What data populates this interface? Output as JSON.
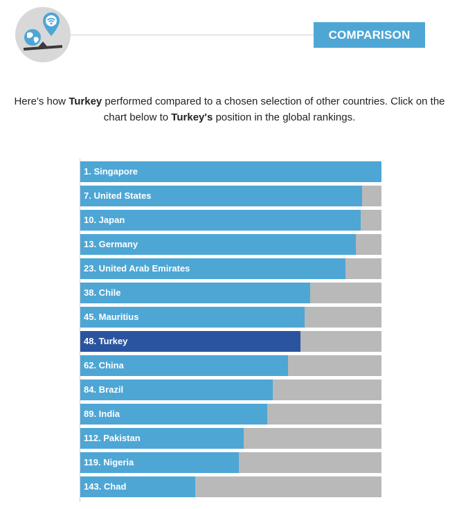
{
  "header": {
    "badge": "COMPARISON",
    "icon": "globe-wifi-scale-icon"
  },
  "intro": {
    "part1": "Here's how ",
    "country_bold": "Turkey",
    "part2": " performed compared to a chosen selection of other countries. Click on the chart below to ",
    "country_possessive_bold": "Turkey's",
    "part3": " position in the global rankings."
  },
  "colors": {
    "bar": "#4ea6d5",
    "highlight_bar": "#2b54a0",
    "track": "#b9b9b9",
    "badge": "#4ea6d5"
  },
  "chart_data": {
    "type": "bar",
    "orientation": "horizontal",
    "highlight": "48. Turkey",
    "categories": [
      "1. Singapore",
      "7. United States",
      "10. Japan",
      "13. Germany",
      "23. United Arab Emirates",
      "38. Chile",
      "45. Mauritius",
      "48. Turkey",
      "62. China",
      "84. Brazil",
      "89. India",
      "112. Pakistan",
      "119. Nigeria",
      "143. Chad"
    ],
    "values": [
      100,
      93.6,
      93.1,
      91.5,
      88.0,
      76.3,
      74.5,
      73.1,
      68.9,
      63.9,
      62.1,
      54.3,
      52.6,
      38.2
    ],
    "xlim": [
      0,
      100
    ]
  }
}
